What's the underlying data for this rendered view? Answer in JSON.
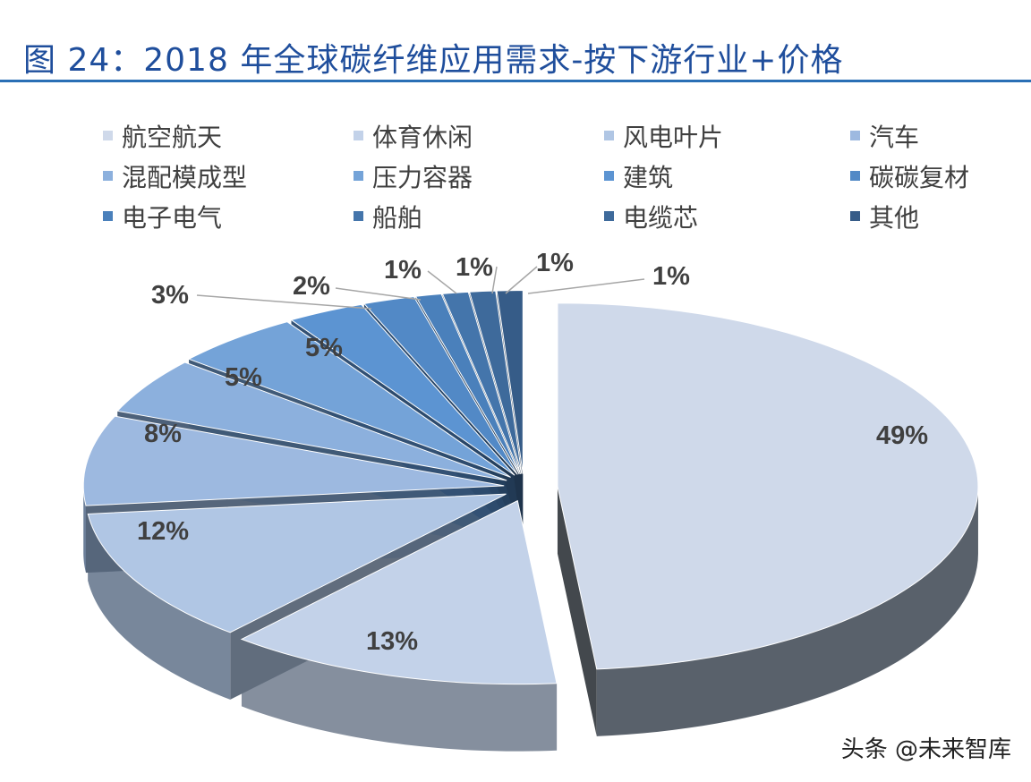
{
  "title": "图 24：2018 年全球碳纤维应用需求-按下游行业+价格",
  "watermark": "头条 @未来智库",
  "chart_data": {
    "type": "pie",
    "style": "3d-exploded",
    "legend_position": "top",
    "categories": [
      "航空航天",
      "体育休闲",
      "风电叶片",
      "汽车",
      "混配模成型",
      "压力容器",
      "建筑",
      "碳碳复材",
      "电子电气",
      "船舶",
      "电缆芯",
      "其他"
    ],
    "values": [
      49,
      13,
      12,
      8,
      5,
      5,
      3,
      2,
      1,
      1,
      1,
      1
    ],
    "labels": [
      "49%",
      "13%",
      "12%",
      "8%",
      "5%",
      "5%",
      "3%",
      "2%",
      "1%",
      "1%",
      "1%",
      "1%"
    ],
    "colors": [
      "#cfd9ea",
      "#c3d2e9",
      "#b0c6e4",
      "#9db9e0",
      "#8cb0dd",
      "#74a3d8",
      "#5c94d2",
      "#5289c6",
      "#4a80bb",
      "#4475ab",
      "#3e6a9b",
      "#365c88"
    ]
  }
}
